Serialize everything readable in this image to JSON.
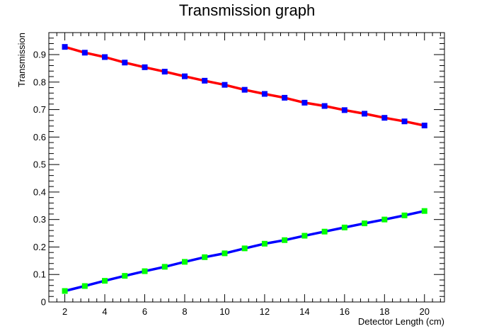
{
  "chart_data": {
    "type": "line",
    "title": "Transmission graph",
    "xlabel": "Detector Length (cm)",
    "ylabel": "Transmission",
    "xlim": [
      1.2,
      21.0
    ],
    "ylim": [
      0,
      0.98
    ],
    "xticks": [
      "2",
      "4",
      "6",
      "8",
      "10",
      "12",
      "14",
      "16",
      "18",
      "20"
    ],
    "yticks": [
      "0",
      "0.1",
      "0.2",
      "0.3",
      "0.4",
      "0.5",
      "0.6",
      "0.7",
      "0.8",
      "0.9"
    ],
    "grid": false,
    "x": [
      2,
      3,
      4,
      5,
      6,
      7,
      8,
      9,
      10,
      11,
      12,
      13,
      14,
      15,
      16,
      17,
      18,
      19,
      20
    ],
    "series": [
      {
        "line_color": "#ff0000",
        "marker_color": "#0000ff",
        "marker": "square",
        "values": [
          0.928,
          0.907,
          0.891,
          0.871,
          0.854,
          0.838,
          0.821,
          0.805,
          0.79,
          0.772,
          0.757,
          0.743,
          0.725,
          0.713,
          0.698,
          0.685,
          0.67,
          0.657,
          0.642
        ]
      },
      {
        "line_color": "#0000ff",
        "marker_color": "#00ff00",
        "marker": "square",
        "values": [
          0.04,
          0.058,
          0.077,
          0.095,
          0.112,
          0.128,
          0.146,
          0.163,
          0.177,
          0.195,
          0.212,
          0.225,
          0.241,
          0.256,
          0.271,
          0.286,
          0.3,
          0.315,
          0.331
        ]
      }
    ]
  }
}
